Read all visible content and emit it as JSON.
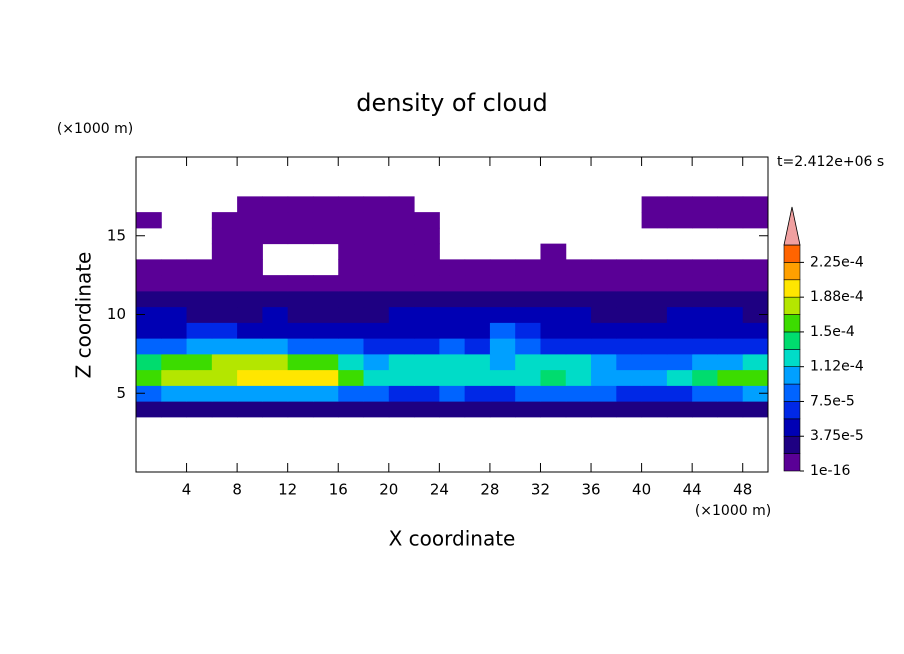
{
  "chart_data": {
    "type": "contour",
    "title": "density of cloud",
    "x_label": "X coordinate",
    "y_label": "Z coordinate",
    "x_unit": "(×1000 m)",
    "y_unit": "(×1000 m)",
    "time_label": "t=2.412e+06 s",
    "xlim": [
      0,
      50
    ],
    "ylim": [
      0,
      20
    ],
    "xticks": [
      4,
      8,
      12,
      16,
      20,
      24,
      28,
      32,
      36,
      40,
      44,
      48
    ],
    "yticks": [
      5,
      10,
      15
    ],
    "x": [
      1,
      3,
      5,
      7,
      9,
      11,
      13,
      15,
      17,
      19,
      21,
      23,
      25,
      27,
      29,
      31,
      33,
      35,
      37,
      39,
      41,
      43,
      45,
      47,
      49
    ],
    "y": [
      4,
      5,
      6,
      7,
      8,
      9,
      10,
      11,
      12,
      13,
      14,
      15,
      16,
      17
    ],
    "z": [
      [
        2e-05,
        3e-05,
        3e-05,
        3e-05,
        3e-05,
        3e-05,
        3e-05,
        3e-05,
        3e-05,
        3e-05,
        2e-05,
        2e-05,
        2e-05,
        2e-05,
        2e-05,
        2e-05,
        2e-05,
        2e-05,
        2e-05,
        2e-05,
        2e-05,
        2e-05,
        3e-05,
        3e-05,
        3e-05
      ],
      [
        9e-05,
        0.0001,
        0.0001,
        0.0001,
        0.0001,
        0.0001,
        0.0001,
        0.0001,
        9e-05,
        8e-05,
        7e-05,
        7e-05,
        8e-05,
        7e-05,
        7e-05,
        8e-05,
        9e-05,
        9e-05,
        8e-05,
        7e-05,
        6e-05,
        7e-05,
        9e-05,
        9e-05,
        0.0001
      ],
      [
        0.00016,
        0.00017,
        0.00018,
        0.00018,
        0.00019,
        0.00019,
        0.0002,
        0.00019,
        0.00016,
        0.00013,
        0.00012,
        0.00012,
        0.00013,
        0.00013,
        0.00012,
        0.00012,
        0.00014,
        0.00013,
        0.00011,
        0.0001,
        0.0001,
        0.00012,
        0.00014,
        0.00015,
        0.00016
      ],
      [
        0.00014,
        0.00016,
        0.00016,
        0.00017,
        0.00017,
        0.00017,
        0.00016,
        0.00015,
        0.00013,
        0.00011,
        0.00012,
        0.00012,
        0.00013,
        0.00012,
        0.00011,
        0.00012,
        0.00013,
        0.00012,
        0.0001,
        8e-05,
        8e-05,
        9e-05,
        0.0001,
        0.00011,
        0.00012
      ],
      [
        8e-05,
        9e-05,
        0.0001,
        0.00011,
        0.00011,
        0.0001,
        9e-05,
        8e-05,
        8e-05,
        7e-05,
        7e-05,
        7e-05,
        8e-05,
        7e-05,
        0.0001,
        8e-05,
        7e-05,
        6e-05,
        6e-05,
        6e-05,
        6e-05,
        6e-05,
        6e-05,
        6e-05,
        6e-05
      ],
      [
        5e-05,
        5e-05,
        6e-05,
        6e-05,
        5e-05,
        5e-05,
        5e-05,
        5e-05,
        5e-05,
        5e-05,
        5e-05,
        5e-05,
        5e-05,
        5e-05,
        8e-05,
        6e-05,
        5e-05,
        5e-05,
        5e-05,
        5e-05,
        5e-05,
        5e-05,
        5e-05,
        5e-05,
        5e-05
      ],
      [
        4e-05,
        4e-05,
        3e-05,
        3e-05,
        3e-05,
        4e-05,
        3e-05,
        3e-05,
        3e-05,
        3e-05,
        4e-05,
        4e-05,
        4e-05,
        4e-05,
        5e-05,
        4e-05,
        4e-05,
        4e-05,
        3e-05,
        3e-05,
        3e-05,
        4e-05,
        4e-05,
        4e-05,
        3e-05
      ],
      [
        2e-05,
        2e-05,
        2e-05,
        2e-05,
        2e-05,
        2e-05,
        2e-05,
        2e-05,
        2e-05,
        2e-05,
        2e-05,
        2e-05,
        2e-05,
        2e-05,
        3e-05,
        2e-05,
        2e-05,
        2e-05,
        2e-05,
        2e-05,
        2e-05,
        2e-05,
        2e-05,
        2e-05,
        2e-05
      ],
      [
        1e-05,
        1e-05,
        1e-05,
        1e-05,
        1e-05,
        1e-05,
        1e-05,
        1e-05,
        1e-05,
        1e-05,
        1e-05,
        1e-05,
        1e-05,
        1e-05,
        1e-05,
        1e-05,
        1e-05,
        1e-05,
        1e-05,
        1e-05,
        1e-05,
        1e-05,
        1e-05,
        1e-05,
        1e-05
      ],
      [
        1e-06,
        1e-06,
        1e-06,
        1e-06,
        1e-06,
        null,
        null,
        null,
        1e-06,
        1e-06,
        1e-06,
        1e-06,
        1e-06,
        1e-06,
        1e-06,
        1e-06,
        1e-06,
        1e-06,
        1e-06,
        1e-06,
        1e-06,
        1e-06,
        1e-06,
        1e-06,
        1e-06
      ],
      [
        null,
        null,
        null,
        1e-06,
        1e-06,
        null,
        null,
        null,
        1e-06,
        1e-06,
        1e-06,
        1e-06,
        null,
        null,
        null,
        null,
        1e-06,
        null,
        null,
        null,
        null,
        null,
        null,
        null,
        null
      ],
      [
        null,
        null,
        null,
        1e-06,
        1e-06,
        1e-06,
        1e-06,
        1e-06,
        1e-06,
        1e-06,
        1e-06,
        1e-06,
        null,
        null,
        null,
        null,
        null,
        null,
        null,
        null,
        null,
        null,
        null,
        null,
        null
      ],
      [
        1e-06,
        null,
        null,
        1e-06,
        1e-06,
        1e-06,
        1e-06,
        1e-06,
        1e-06,
        1e-06,
        1e-06,
        1e-06,
        null,
        null,
        null,
        null,
        null,
        null,
        null,
        null,
        1e-06,
        1e-06,
        1e-06,
        1e-06,
        1e-06
      ],
      [
        null,
        null,
        null,
        null,
        1e-06,
        1e-06,
        1e-06,
        1e-06,
        1e-06,
        1e-06,
        1e-06,
        null,
        null,
        null,
        null,
        null,
        null,
        null,
        null,
        null,
        1e-06,
        1e-06,
        1e-06,
        1e-06,
        1e-06
      ]
    ],
    "levels": [
      1e-16,
      1.875e-05,
      3.75e-05,
      5.625e-05,
      7.5e-05,
      9.375e-05,
      0.0001125,
      0.00013125,
      0.00015,
      0.00016875,
      0.0001875,
      0.00020625,
      0.000225,
      0.00024375
    ],
    "colors": [
      "#5a0096",
      "#1e0082",
      "#0000b4",
      "#0028e6",
      "#0064ff",
      "#00a0ff",
      "#00dcc8",
      "#00dc6e",
      "#3cdc00",
      "#b4e600",
      "#ffe600",
      "#ffa000",
      "#ff6400"
    ],
    "extend_color": "#f0a0a0",
    "colorbar_ticks": [
      {
        "value": 1e-16,
        "label": "1e-16"
      },
      {
        "value": 3.75e-05,
        "label": "3.75e-5"
      },
      {
        "value": 7.5e-05,
        "label": "7.5e-5"
      },
      {
        "value": 0.0001125,
        "label": "1.12e-4"
      },
      {
        "value": 0.00015,
        "label": "1.5e-4"
      },
      {
        "value": 0.0001875,
        "label": "1.88e-4"
      },
      {
        "value": 0.000225,
        "label": "2.25e-4"
      }
    ]
  }
}
